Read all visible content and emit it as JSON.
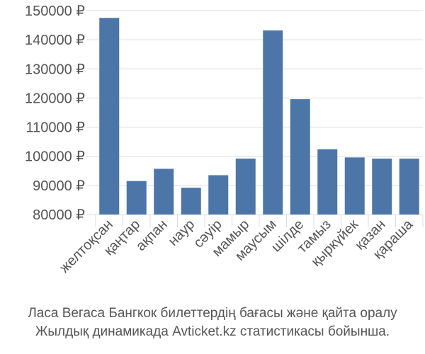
{
  "chart_data": {
    "type": "bar",
    "categories": [
      "желтоқсан",
      "қаңтар",
      "ақпан",
      "наур",
      "сәуір",
      "мамыр",
      "маусым",
      "шілде",
      "тамыз",
      "қыркүйек",
      "қазан",
      "қараша"
    ],
    "values": [
      147500,
      91500,
      95700,
      89200,
      93500,
      99200,
      143200,
      119600,
      102400,
      99600,
      99200,
      99200
    ],
    "ylim": [
      80000,
      150000
    ],
    "yticks": [
      80000,
      90000,
      100000,
      110000,
      120000,
      130000,
      140000,
      150000
    ],
    "ytick_labels": [
      "80000 ₽",
      "90000 ₽",
      "100000 ₽",
      "110000 ₽",
      "120000 ₽",
      "130000 ₽",
      "140000 ₽",
      "150000 ₽"
    ],
    "bar_color": "#4d76a8",
    "grid": true
  },
  "caption": {
    "line1": "Ласа Вегаса Бангкок билеттердің бағасы және қайта оралу",
    "line2": "Жылдық динамикада Avticket.kz статистикасы бойынша."
  }
}
